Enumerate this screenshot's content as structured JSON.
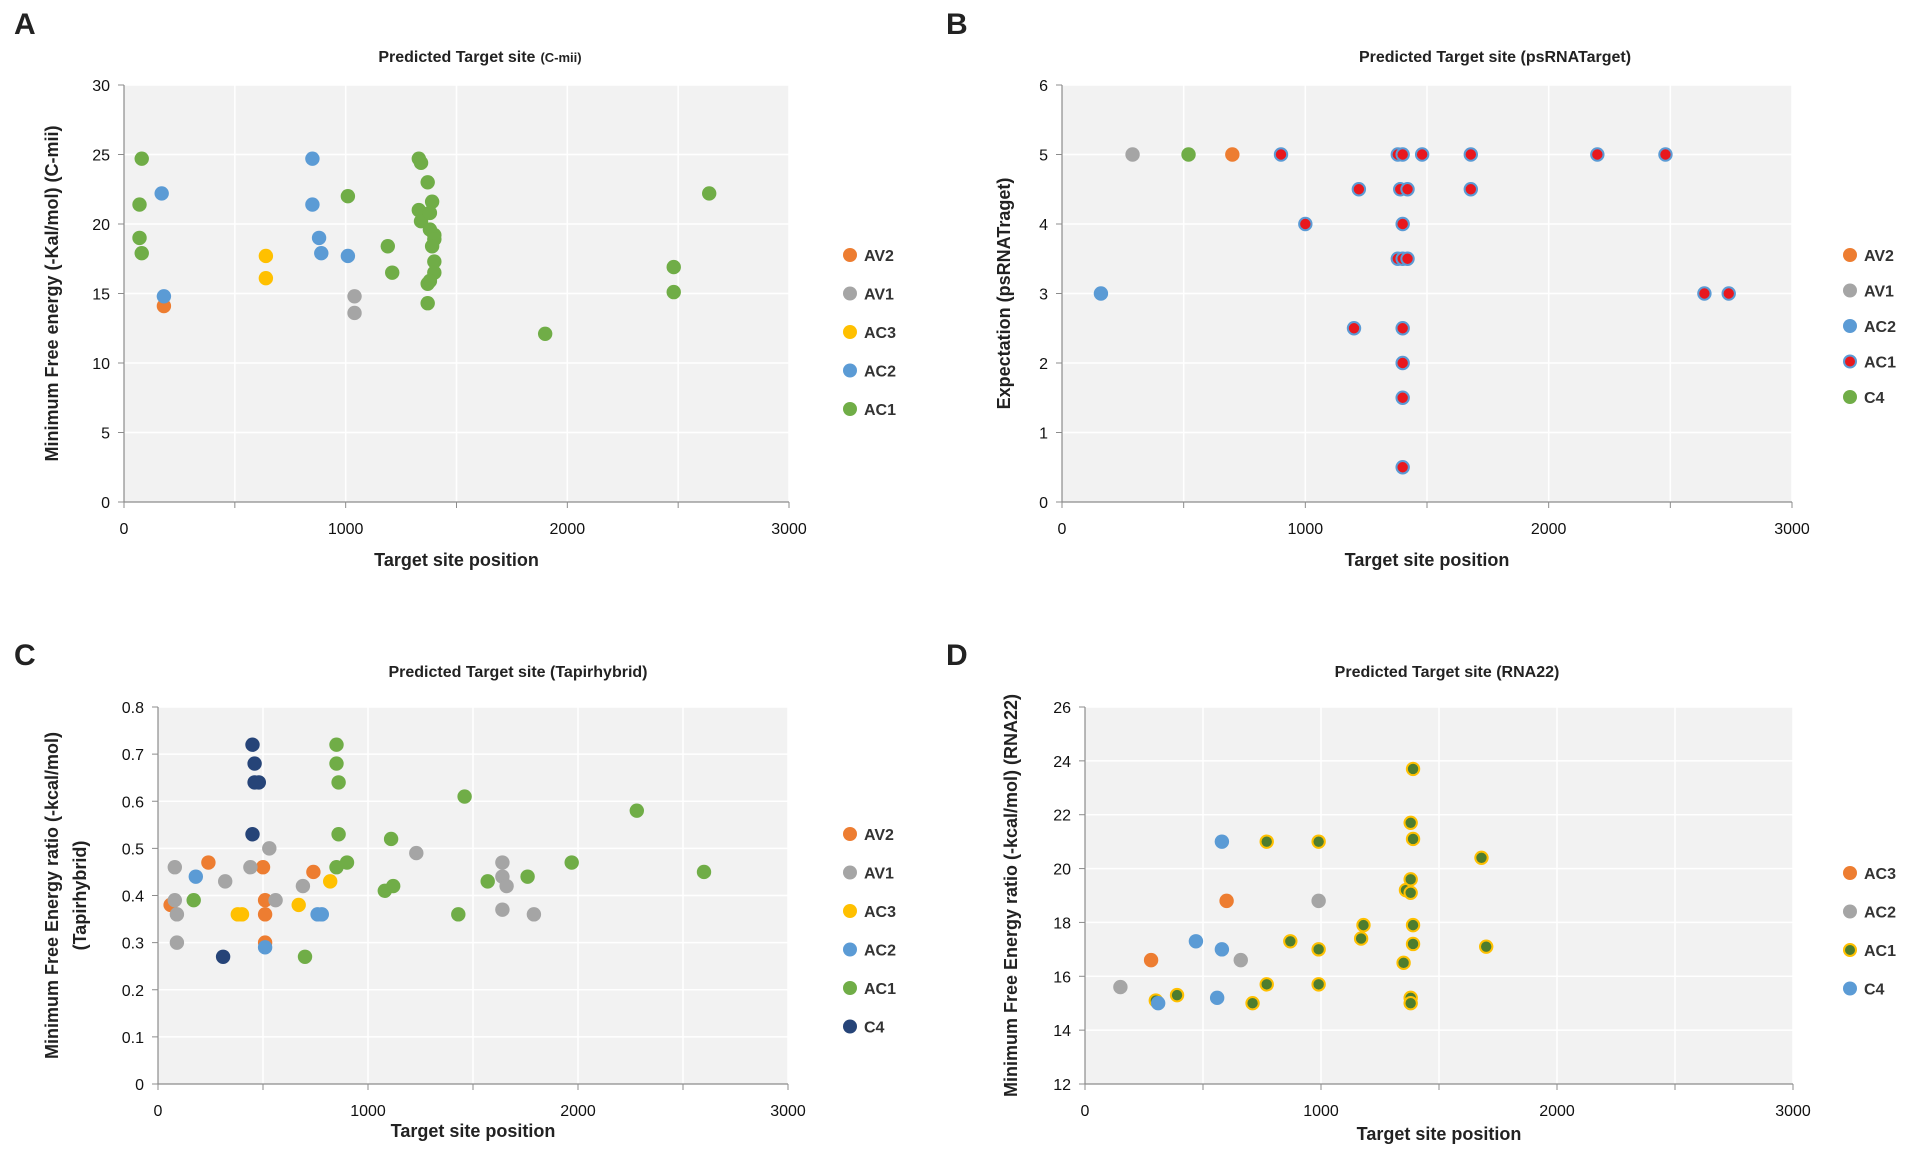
{
  "colors": {
    "AV2": "#ED7D31",
    "AV1": "#A5A5A5",
    "AC3": "#FFC000",
    "AC2": "#5B9BD5",
    "AC1": "#70AD47",
    "C4": "#264478",
    "plot_bg": "#F2F2F2",
    "grid": "#FFFFFF",
    "red_fill": "#E8181E",
    "blue_ring": "#5B9BD5",
    "dark_green_fill": "#4E7D2E",
    "yellow_ring": "#FFC000"
  },
  "chart_data": [
    {
      "panel": "A",
      "type": "scatter",
      "title": "Predicted Target site",
      "title_suffix": "(C-mii)",
      "xlabel": "Target site position",
      "ylabel": "Minimum Free energy (-Kal/mol) (C-mii)",
      "xlim": [
        0,
        3000
      ],
      "ylim": [
        0,
        30
      ],
      "xticks": [
        0,
        1000,
        2000,
        3000
      ],
      "yticks": [
        0,
        5,
        10,
        15,
        20,
        25,
        30
      ],
      "legend": [
        "AV2",
        "AV1",
        "AC3",
        "AC2",
        "AC1"
      ],
      "series": [
        {
          "name": "AV2",
          "style": "AV2",
          "points": [
            [
              180,
              14.1
            ]
          ]
        },
        {
          "name": "AV1",
          "style": "AV1",
          "points": [
            [
              1040,
              14.8
            ],
            [
              1040,
              13.6
            ]
          ]
        },
        {
          "name": "AC3",
          "style": "AC3",
          "points": [
            [
              640,
              17.7
            ],
            [
              640,
              16.1
            ]
          ]
        },
        {
          "name": "AC2",
          "style": "AC2",
          "points": [
            [
              170,
              22.2
            ],
            [
              180,
              14.8
            ],
            [
              850,
              24.7
            ],
            [
              850,
              21.4
            ],
            [
              880,
              19.0
            ],
            [
              890,
              17.9
            ],
            [
              1010,
              17.7
            ]
          ]
        },
        {
          "name": "AC1",
          "style": "AC1",
          "points": [
            [
              80,
              24.7
            ],
            [
              70,
              21.4
            ],
            [
              70,
              19.0
            ],
            [
              80,
              17.9
            ],
            [
              1010,
              22.0
            ],
            [
              1190,
              18.4
            ],
            [
              1210,
              16.5
            ],
            [
              1330,
              24.7
            ],
            [
              1340,
              24.4
            ],
            [
              1330,
              21.0
            ],
            [
              1340,
              20.2
            ],
            [
              1370,
              23.0
            ],
            [
              1390,
              21.6
            ],
            [
              1380,
              20.8
            ],
            [
              1380,
              19.6
            ],
            [
              1400,
              19.2
            ],
            [
              1400,
              18.9
            ],
            [
              1390,
              18.4
            ],
            [
              1400,
              17.3
            ],
            [
              1400,
              16.5
            ],
            [
              1380,
              15.9
            ],
            [
              1370,
              15.7
            ],
            [
              1370,
              14.3
            ],
            [
              1900,
              12.1
            ],
            [
              2480,
              16.9
            ],
            [
              2480,
              15.1
            ],
            [
              2640,
              22.2
            ]
          ]
        }
      ]
    },
    {
      "panel": "B",
      "type": "scatter",
      "title": "Predicted Target site  (psRNATarget)",
      "xlabel": "Target site position",
      "ylabel": "Expectation (psRNATraget)",
      "xlim": [
        0,
        3000
      ],
      "ylim": [
        0,
        6
      ],
      "xticks": [
        0,
        1000,
        2000,
        3000
      ],
      "yticks": [
        0,
        1,
        2,
        3,
        4,
        5,
        6
      ],
      "legend": [
        "AV2",
        "AV1",
        "AC2",
        "AC1",
        "C4"
      ],
      "series": [
        {
          "name": "AV2",
          "style": "AV2",
          "points": [
            [
              700,
              5
            ]
          ]
        },
        {
          "name": "AV1",
          "style": "AV1",
          "points": [
            [
              290,
              5
            ]
          ]
        },
        {
          "name": "AC2",
          "style": "AC2",
          "points": [
            [
              160,
              3
            ]
          ]
        },
        {
          "name": "AC1",
          "style": "AC1_B",
          "points": [
            [
              900,
              5
            ],
            [
              1380,
              5
            ],
            [
              1400,
              5
            ],
            [
              1480,
              5
            ],
            [
              1680,
              5
            ],
            [
              2200,
              5
            ],
            [
              2480,
              5
            ],
            [
              1220,
              4.5
            ],
            [
              1390,
              4.5
            ],
            [
              1420,
              4.5
            ],
            [
              1680,
              4.5
            ],
            [
              1000,
              4.0
            ],
            [
              1400,
              4.0
            ],
            [
              1380,
              3.5
            ],
            [
              1400,
              3.5
            ],
            [
              1420,
              3.5
            ],
            [
              2640,
              3.0
            ],
            [
              2740,
              3.0
            ],
            [
              1200,
              2.5
            ],
            [
              1400,
              2.5
            ],
            [
              1400,
              2.0
            ],
            [
              1400,
              1.5
            ],
            [
              1400,
              0.5
            ]
          ]
        },
        {
          "name": "C4",
          "style": "AC1",
          "points": [
            [
              520,
              5
            ]
          ]
        }
      ]
    },
    {
      "panel": "C",
      "type": "scatter",
      "title": "Predicted Target site (Tapirhybrid)",
      "xlabel": "Target site position",
      "ylabel": "Minimum Free Energy ratio (-kcal/mol)",
      "ylabel2": "(Tapirhybrid)",
      "xlim": [
        0,
        3000
      ],
      "ylim": [
        0,
        0.8
      ],
      "xticks": [
        0,
        1000,
        2000,
        3000
      ],
      "yticks": [
        0,
        0.1,
        0.2,
        0.3,
        0.4,
        0.5,
        0.6,
        0.7,
        0.8
      ],
      "legend": [
        "AV2",
        "AV1",
        "AC3",
        "AC2",
        "AC1",
        "C4"
      ],
      "series": [
        {
          "name": "AV2",
          "style": "AV2",
          "points": [
            [
              60,
              0.38
            ],
            [
              240,
              0.47
            ],
            [
              500,
              0.46
            ],
            [
              510,
              0.39
            ],
            [
              510,
              0.36
            ],
            [
              510,
              0.3
            ],
            [
              740,
              0.45
            ]
          ]
        },
        {
          "name": "AV1",
          "style": "AV1",
          "points": [
            [
              80,
              0.46
            ],
            [
              80,
              0.39
            ],
            [
              90,
              0.36
            ],
            [
              90,
              0.3
            ],
            [
              320,
              0.43
            ],
            [
              440,
              0.46
            ],
            [
              530,
              0.5
            ],
            [
              560,
              0.39
            ],
            [
              690,
              0.42
            ],
            [
              1230,
              0.49
            ],
            [
              1640,
              0.47
            ],
            [
              1640,
              0.44
            ],
            [
              1660,
              0.42
            ],
            [
              1640,
              0.37
            ],
            [
              1790,
              0.36
            ]
          ]
        },
        {
          "name": "AC3",
          "style": "AC3",
          "points": [
            [
              380,
              0.36
            ],
            [
              400,
              0.36
            ],
            [
              670,
              0.38
            ],
            [
              820,
              0.43
            ]
          ]
        },
        {
          "name": "AC2",
          "style": "AC2",
          "points": [
            [
              180,
              0.44
            ],
            [
              510,
              0.29
            ],
            [
              760,
              0.36
            ],
            [
              780,
              0.36
            ]
          ]
        },
        {
          "name": "AC1",
          "style": "AC1",
          "points": [
            [
              170,
              0.39
            ],
            [
              700,
              0.27
            ],
            [
              850,
              0.72
            ],
            [
              850,
              0.68
            ],
            [
              860,
              0.64
            ],
            [
              860,
              0.53
            ],
            [
              850,
              0.46
            ],
            [
              900,
              0.47
            ],
            [
              1080,
              0.41
            ],
            [
              1110,
              0.52
            ],
            [
              1120,
              0.42
            ],
            [
              1430,
              0.36
            ],
            [
              1460,
              0.61
            ],
            [
              1570,
              0.43
            ],
            [
              1760,
              0.44
            ],
            [
              1970,
              0.47
            ],
            [
              2280,
              0.58
            ],
            [
              2600,
              0.45
            ]
          ]
        },
        {
          "name": "C4",
          "style": "C4",
          "points": [
            [
              450,
              0.72
            ],
            [
              460,
              0.68
            ],
            [
              460,
              0.64
            ],
            [
              480,
              0.64
            ],
            [
              450,
              0.53
            ],
            [
              310,
              0.27
            ]
          ]
        }
      ]
    },
    {
      "panel": "D",
      "type": "scatter",
      "title": "Predicted Target site (RNA22)",
      "xlabel": "Target site position",
      "ylabel": "Minimum Free Energy ratio (-kcal/mol) (RNA22)",
      "xlim": [
        0,
        3000
      ],
      "ylim": [
        12,
        26
      ],
      "xticks": [
        0,
        1000,
        2000,
        3000
      ],
      "yticks": [
        12,
        14,
        16,
        18,
        20,
        22,
        24,
        26
      ],
      "legend": [
        "AC3",
        "AC2",
        "AC1",
        "C4"
      ],
      "series": [
        {
          "name": "AC3",
          "style": "AV2",
          "points": [
            [
              280,
              16.6
            ],
            [
              600,
              18.8
            ]
          ]
        },
        {
          "name": "AC2",
          "style": "AV1",
          "points": [
            [
              150,
              15.6
            ],
            [
              660,
              16.6
            ],
            [
              990,
              18.8
            ]
          ]
        },
        {
          "name": "AC1",
          "style": "AC1_D",
          "points": [
            [
              300,
              15.1
            ],
            [
              390,
              15.3
            ],
            [
              710,
              15.0
            ],
            [
              770,
              15.7
            ],
            [
              770,
              21.0
            ],
            [
              870,
              17.3
            ],
            [
              990,
              21.0
            ],
            [
              990,
              17.0
            ],
            [
              990,
              15.7
            ],
            [
              1180,
              17.9
            ],
            [
              1170,
              17.4
            ],
            [
              1350,
              16.5
            ],
            [
              1360,
              19.2
            ],
            [
              1380,
              19.1
            ],
            [
              1380,
              19.6
            ],
            [
              1390,
              23.7
            ],
            [
              1380,
              21.7
            ],
            [
              1390,
              21.1
            ],
            [
              1390,
              17.9
            ],
            [
              1390,
              17.2
            ],
            [
              1380,
              15.2
            ],
            [
              1380,
              15.0
            ],
            [
              1680,
              20.4
            ],
            [
              1700,
              17.1
            ]
          ]
        },
        {
          "name": "C4",
          "style": "AC2",
          "points": [
            [
              310,
              15.0
            ],
            [
              470,
              17.3
            ],
            [
              560,
              15.2
            ],
            [
              580,
              21.0
            ],
            [
              580,
              17.0
            ]
          ]
        }
      ]
    }
  ]
}
